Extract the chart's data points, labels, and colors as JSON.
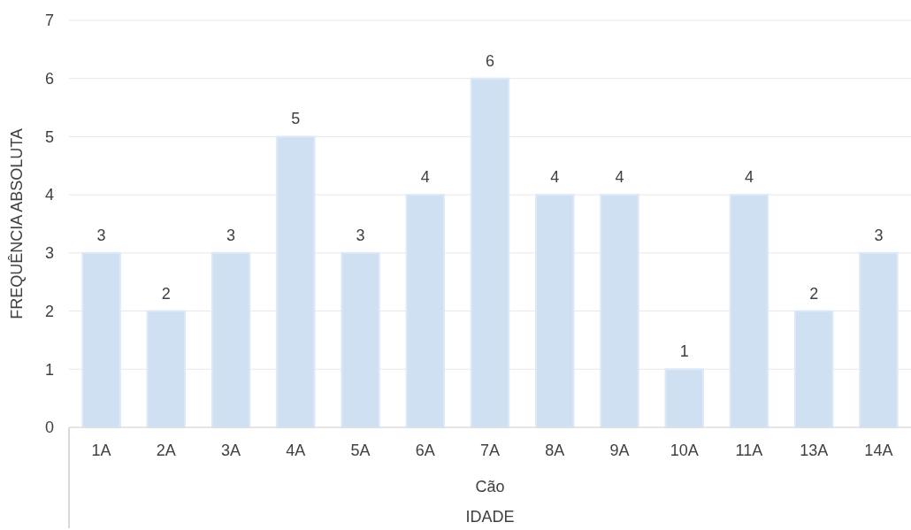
{
  "chart_data": {
    "type": "bar",
    "categories": [
      "1A",
      "2A",
      "3A",
      "4A",
      "5A",
      "6A",
      "7A",
      "8A",
      "9A",
      "10A",
      "11A",
      "13A",
      "14A"
    ],
    "values": [
      3,
      2,
      3,
      5,
      3,
      4,
      6,
      4,
      4,
      1,
      4,
      2,
      3
    ],
    "color": "#cfe0f3",
    "ylim": [
      0,
      7
    ],
    "yticks": [
      0,
      1,
      2,
      3,
      4,
      5,
      6,
      7
    ],
    "grid": "y",
    "data_labels": true,
    "ylabel": "FREQUÊNCIA ABSOLUTA",
    "xlabel": "IDADE",
    "annotations": [
      "Cão"
    ]
  }
}
